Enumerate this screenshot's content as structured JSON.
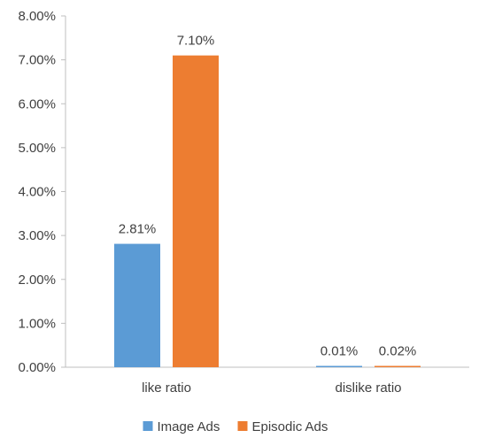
{
  "chart_data": {
    "type": "bar",
    "categories": [
      "like ratio",
      "dislike ratio"
    ],
    "series": [
      {
        "name": "Image Ads",
        "color": "#5B9BD5",
        "values": [
          2.81,
          0.01
        ],
        "labels": [
          "2.81%",
          "0.01%"
        ]
      },
      {
        "name": "Episodic Ads",
        "color": "#ED7D31",
        "values": [
          7.1,
          0.02
        ],
        "labels": [
          "7.10%",
          "0.02%"
        ]
      }
    ],
    "ylim": [
      0,
      8
    ],
    "yticks": [
      "0.00%",
      "1.00%",
      "2.00%",
      "3.00%",
      "4.00%",
      "5.00%",
      "6.00%",
      "7.00%",
      "8.00%"
    ],
    "grid": false,
    "legend": "bottom"
  }
}
